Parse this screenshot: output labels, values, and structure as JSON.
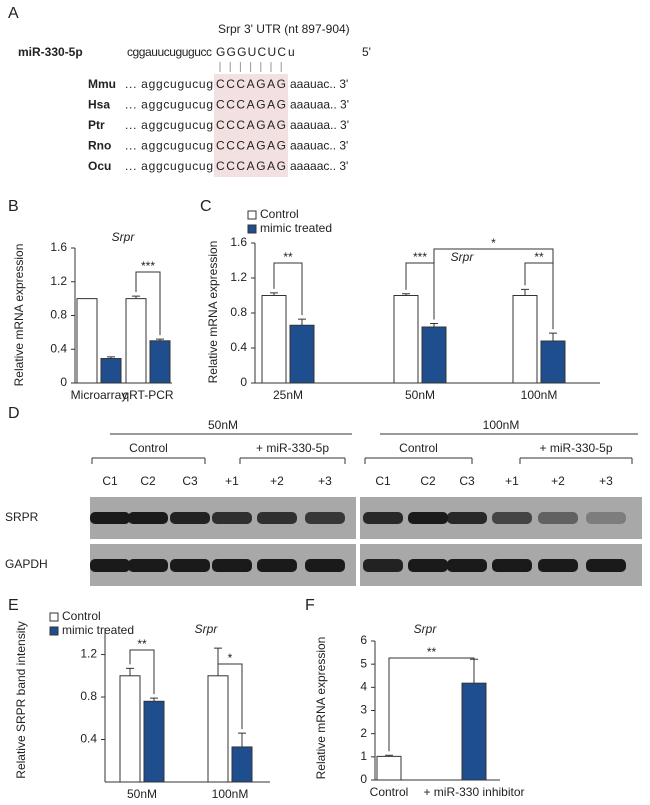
{
  "panel_a": {
    "label": "A",
    "title": "Srpr 3' UTR (nt 897-904)",
    "mirna": {
      "name": "miR-330-5p",
      "seq": [
        "cggauucugugucc",
        "GGGUCUC",
        "u"
      ],
      "end": "5'"
    },
    "rows": [
      {
        "species": "Mmu",
        "left": "... aggcugucug",
        "site": "CCCAGAG",
        "right": "aaauac.. 3'"
      },
      {
        "species": "Hsa",
        "left": "... aggcugucug",
        "site": "CCCAGAG",
        "right": "aaauaa.. 3'"
      },
      {
        "species": "Ptr",
        "left": "... aggcugucug",
        "site": "CCCAGAG",
        "right": "aaauaa.. 3'"
      },
      {
        "species": "Rno",
        "left": "... aggcugucug",
        "site": "CCCAGAG",
        "right": "aaauac.. 3'"
      },
      {
        "species": "Ocu",
        "left": "... aggcugucug",
        "site": "CCCAGAG",
        "right": "aaaaac.. 3'"
      }
    ]
  },
  "panel_d": {
    "label": "D",
    "groups": [
      {
        "dose": "50nM",
        "control": "Control",
        "treated": "+ miR-330-5p",
        "lanes": [
          "C1",
          "C2",
          "C3",
          "+1",
          "+2",
          "+3"
        ]
      },
      {
        "dose": "100nM",
        "control": "Control",
        "treated": "+ miR-330-5p",
        "lanes": [
          "C1",
          "C2",
          "C3",
          "+1",
          "+2",
          "+3"
        ]
      }
    ],
    "rows": [
      "SRPR",
      "GAPDH"
    ]
  },
  "chart_data": [
    {
      "type": "bar",
      "label": "B",
      "title": "Srpr",
      "y_label": "Relative mRNA expression",
      "categories": [
        "Microarray",
        "qRT-PCR"
      ],
      "series": [
        {
          "color": "#ffffff",
          "values": [
            1,
            1
          ],
          "errors": [
            null,
            0.03
          ]
        },
        {
          "color": "#1f4e8f",
          "values": [
            0.29,
            0.5
          ],
          "errors": [
            0.02,
            0.02
          ]
        }
      ],
      "ylim": [
        0,
        1.6
      ],
      "yticks": [
        0,
        0.4,
        0.8,
        1.2,
        1.6
      ],
      "significance": [
        "***"
      ]
    },
    {
      "type": "bar",
      "label": "C",
      "title": "Srpr",
      "y_label": "Relative mRNA expression",
      "categories": [
        "25nM",
        "50nM",
        "100nM"
      ],
      "series": [
        {
          "name": "Control",
          "color": "#ffffff",
          "values": [
            1,
            1,
            1
          ],
          "errors": [
            0.03,
            0.02,
            0.07
          ]
        },
        {
          "name": "mimic treated",
          "color": "#1f4e8f",
          "values": [
            0.66,
            0.64,
            0.48
          ],
          "errors": [
            0.07,
            0.04,
            0.09
          ]
        }
      ],
      "ylim": [
        0,
        1.6
      ],
      "yticks": [
        0,
        0.4,
        0.8,
        1.2,
        1.6
      ],
      "legend": "upper left",
      "significance": [
        "**",
        "***",
        "**",
        "*"
      ]
    },
    {
      "type": "bar",
      "label": "E",
      "title": "Srpr",
      "y_label": "Relative SRPR band intensity",
      "categories": [
        "50nM",
        "100nM"
      ],
      "series": [
        {
          "name": "Control",
          "color": "#ffffff",
          "values": [
            1,
            1
          ],
          "errors": [
            0.07,
            0.26
          ]
        },
        {
          "name": "mimic treated",
          "color": "#1f4e8f",
          "values": [
            0.76,
            0.33
          ],
          "errors": [
            0.03,
            0.13
          ]
        }
      ],
      "ylim": [
        0,
        1.45
      ],
      "yticks": [
        0.4,
        0.8,
        1.2
      ],
      "legend": "upper left",
      "significance": [
        "**",
        "*"
      ]
    },
    {
      "type": "bar",
      "label": "F",
      "title": "Srpr",
      "y_label": "Relative mRNA expression",
      "categories": [
        "Control",
        "+ miR-330 inhibitor"
      ],
      "series": [
        {
          "colors": [
            "#ffffff",
            "#1f4e8f"
          ],
          "values": [
            1.02,
            4.18
          ],
          "errors": [
            0.05,
            1.03
          ]
        }
      ],
      "ylim": [
        0,
        6
      ],
      "yticks": [
        0,
        1,
        2,
        3,
        4,
        5,
        6
      ],
      "significance": [
        "**"
      ]
    }
  ]
}
